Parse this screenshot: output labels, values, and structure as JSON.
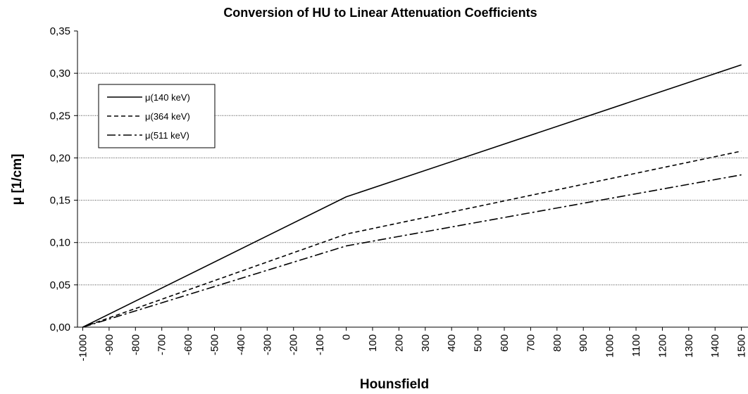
{
  "chart_data": {
    "type": "line",
    "title": "Conversion of HU to Linear Attenuation Coefficients",
    "xlabel": "Hounsfield",
    "ylabel": "μ [1/cm]",
    "x": [
      -1000,
      0,
      1500
    ],
    "series": [
      {
        "name": "μ(140 keV)",
        "color": "#000000",
        "dash": "solid",
        "values": [
          0,
          0.154,
          0.31
        ]
      },
      {
        "name": "μ(364 keV)",
        "color": "#000000",
        "dash": "dashed",
        "values": [
          0,
          0.11,
          0.208
        ]
      },
      {
        "name": "μ(511 keV)",
        "color": "#000000",
        "dash": "dashdot",
        "values": [
          0,
          0.096,
          0.18
        ]
      }
    ],
    "xlim": [
      -1020,
      1525
    ],
    "xticks": [
      -1000,
      -900,
      -800,
      -700,
      -600,
      -500,
      -400,
      -300,
      -200,
      -100,
      0,
      100,
      200,
      300,
      400,
      500,
      600,
      700,
      800,
      900,
      1000,
      1100,
      1200,
      1300,
      1400,
      1500
    ],
    "ylim": [
      0,
      0.35
    ],
    "yticks": [
      {
        "value": 0,
        "label": "0,00"
      },
      {
        "value": 0.05,
        "label": "0,05"
      },
      {
        "value": 0.1,
        "label": "0,10"
      },
      {
        "value": 0.15,
        "label": "0,15"
      },
      {
        "value": 0.2,
        "label": "0,20"
      },
      {
        "value": 0.25,
        "label": "0,25"
      },
      {
        "value": 0.3,
        "label": "0,30"
      },
      {
        "value": 0.35,
        "label": "0,35"
      }
    ],
    "grid": true,
    "legend": "upper left"
  }
}
